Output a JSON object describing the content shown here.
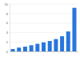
{
  "chart_data": {
    "type": "bar",
    "categories": [
      null,
      null,
      null,
      null,
      null,
      null,
      null,
      null,
      null,
      null,
      null
    ],
    "values": [
      0.5,
      0.8,
      1,
      1.3,
      1.6,
      1.9,
      2.2,
      2.6,
      3.2,
      4.2,
      9.2
    ],
    "color": "#2876dd",
    "ylim": [
      0,
      10
    ],
    "yticks": [
      0,
      2,
      4,
      6,
      8,
      10
    ],
    "grid": true,
    "tick_labels": "y"
  }
}
